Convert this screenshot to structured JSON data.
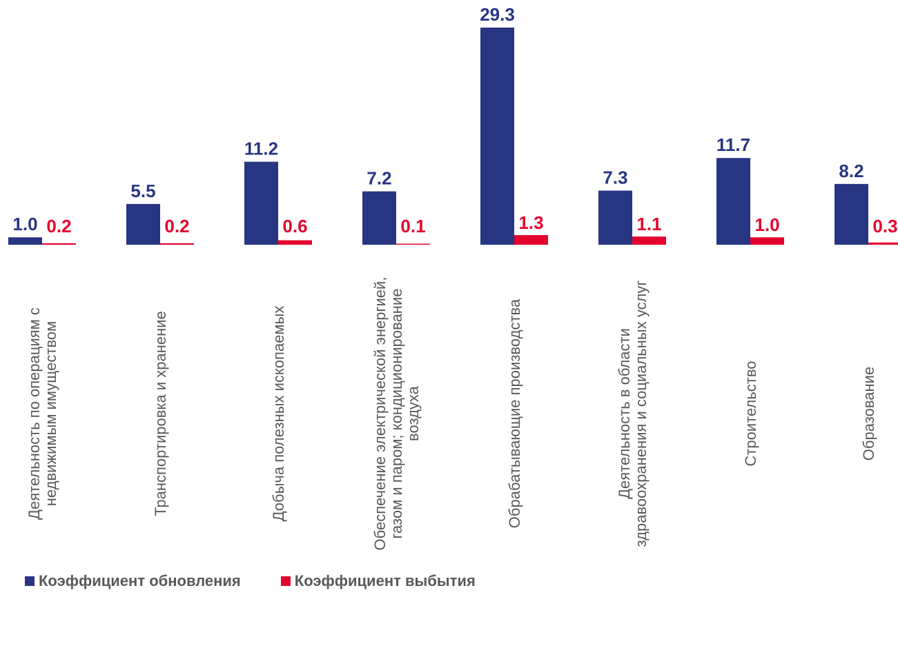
{
  "chart_data": {
    "type": "bar",
    "categories": [
      [
        "Деятельность по операциям с",
        "недвижимым имуществом"
      ],
      [
        "Транспортировка и хранение"
      ],
      [
        "Добыча полезных ископаемых"
      ],
      [
        "Обеспечение электрической энергией,",
        "газом и паром; кондиционирование",
        "воздуха"
      ],
      [
        "Обрабатывающие производства"
      ],
      [
        "Деятельность в области",
        "здравоохранения и социальных услуг"
      ],
      [
        "Строительство"
      ],
      [
        "Образование"
      ]
    ],
    "series": [
      {
        "name": "Коэффициент обновления",
        "color": "#283583",
        "values": [
          1.0,
          5.5,
          11.2,
          7.2,
          29.3,
          7.3,
          11.7,
          8.2
        ],
        "labels": [
          "1.0",
          "5.5",
          "11.2",
          "7.2",
          "29.3",
          "7.3",
          "11.7",
          "8.2"
        ]
      },
      {
        "name": "Коэффициент выбытия",
        "color": "#e4032e",
        "values": [
          0.2,
          0.2,
          0.6,
          0.1,
          1.3,
          1.1,
          1.0,
          0.3
        ],
        "labels": [
          "0.2",
          "0.2",
          "0.6",
          "0.1",
          "1.3",
          "1.1",
          "1.0",
          "0.3"
        ]
      }
    ],
    "ylim": [
      0,
      29.3
    ],
    "grid": false,
    "legend": "bottom-left"
  }
}
